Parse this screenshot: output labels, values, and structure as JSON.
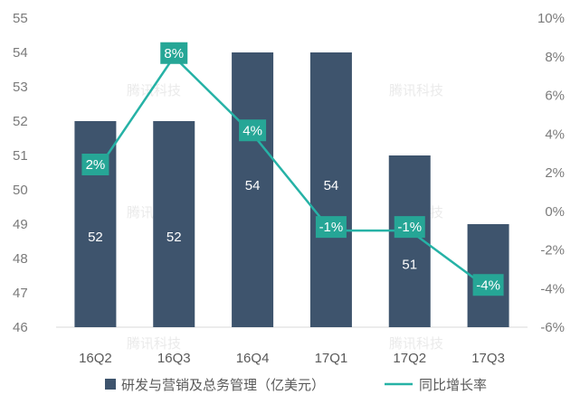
{
  "chart_data": {
    "type": "bar",
    "categories": [
      "16Q2",
      "16Q3",
      "16Q4",
      "17Q1",
      "17Q2",
      "17Q3"
    ],
    "series": [
      {
        "name": "研发与营销及总务管理（亿美元）",
        "type": "bar",
        "axis": "left",
        "values": [
          52,
          52,
          54,
          54,
          51,
          49
        ],
        "labels": [
          "52",
          "52",
          "54",
          "54",
          "51",
          ""
        ]
      },
      {
        "name": "同比增长率",
        "type": "line",
        "axis": "right",
        "values": [
          2,
          8,
          4,
          -1,
          -1,
          -4
        ],
        "labels": [
          "2%",
          "8%",
          "4%",
          "-1%",
          "-1%",
          "-4%"
        ]
      }
    ],
    "y_left": {
      "min": 46,
      "max": 55,
      "ticks": [
        "46",
        "47",
        "48",
        "49",
        "50",
        "51",
        "52",
        "53",
        "54",
        "55"
      ]
    },
    "y_right": {
      "min": -6,
      "max": 10,
      "ticks": [
        "-6%",
        "-4%",
        "-2%",
        "0%",
        "2%",
        "4%",
        "6%",
        "8%",
        "10%"
      ]
    },
    "legend": "bottom",
    "grid": false,
    "colors": {
      "bar": "#3e546d",
      "line": "#26b2a6",
      "line_label_bg": "#26a696",
      "axis_text": "#7a7a7a"
    },
    "watermark": "腾讯科技"
  }
}
